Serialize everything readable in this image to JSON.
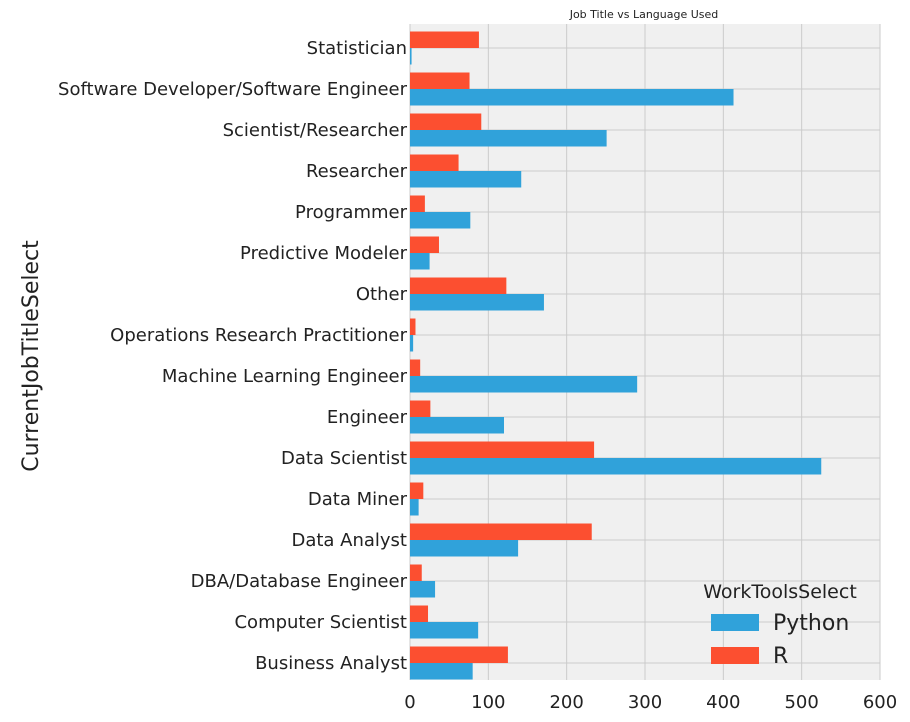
{
  "chart_data": {
    "type": "bar",
    "orientation": "horizontal",
    "title": "Job Title vs Language Used",
    "ylabel": "CurrentJobTitleSelect",
    "xlabel": "",
    "xlim": [
      0,
      600
    ],
    "xticks": [
      "0",
      "100",
      "200",
      "300",
      "400",
      "500",
      "600"
    ],
    "grid": true,
    "categories": [
      "Statistician",
      "Software Developer/Software Engineer",
      "Scientist/Researcher",
      "Researcher",
      "Programmer",
      "Predictive Modeler",
      "Other",
      "Operations Research Practitioner",
      "Machine Learning Engineer",
      "Engineer",
      "Data Scientist",
      "Data Miner",
      "Data Analyst",
      "DBA/Database Engineer",
      "Computer Scientist",
      "Business Analyst"
    ],
    "series": [
      {
        "name": "Python",
        "color": "#30a2da",
        "values": [
          2,
          413,
          251,
          142,
          77,
          25,
          171,
          4,
          290,
          120,
          525,
          11,
          138,
          32,
          87,
          80
        ]
      },
      {
        "name": "R",
        "color": "#fc4f30",
        "values": [
          88,
          76,
          91,
          62,
          19,
          37,
          123,
          7,
          13,
          26,
          235,
          17,
          232,
          15,
          23,
          125
        ]
      }
    ],
    "legend": {
      "title": "WorkToolsSelect",
      "placement": "bottom-right"
    }
  }
}
